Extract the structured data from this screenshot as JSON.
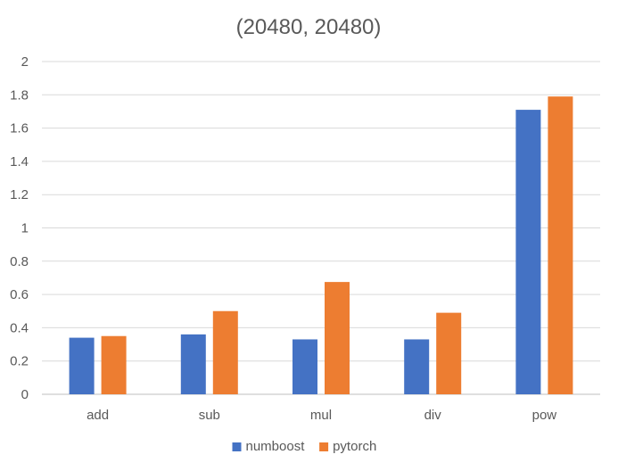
{
  "chart_data": {
    "type": "bar",
    "title": "(20480, 20480)",
    "categories": [
      "add",
      "sub",
      "mul",
      "div",
      "pow"
    ],
    "series": [
      {
        "name": "numboost",
        "values": [
          0.34,
          0.36,
          0.33,
          0.33,
          1.71
        ],
        "color": "#4472C4"
      },
      {
        "name": "pytorch",
        "values": [
          0.35,
          0.5,
          0.675,
          0.49,
          1.79
        ],
        "color": "#ED7D31"
      }
    ],
    "ylim": [
      0,
      2
    ],
    "yticks": [
      "0",
      "0.2",
      "0.4",
      "0.6",
      "0.8",
      "1",
      "1.2",
      "1.4",
      "1.6",
      "1.8",
      "2"
    ],
    "grid": true,
    "legend_position": "bottom",
    "gridline_color": "#D9D9D9",
    "axis_color": "#BFBFBF"
  }
}
